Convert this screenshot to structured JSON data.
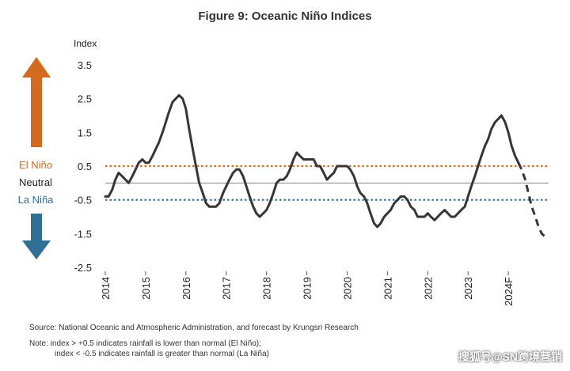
{
  "title": "Figure 9: Oceanic Niño Indices",
  "side_labels": {
    "el_nino": "El Niño",
    "neutral": "Neutral",
    "la_nina": "La Niña"
  },
  "colors": {
    "el_nino": "#d46a1e",
    "la_nina": "#2f6f96",
    "line": "#3a3436",
    "zero_line": "#888888"
  },
  "source": "Source: National Oceanic and Atmospheric Administration, and forecast by Krungsri Research",
  "note_line1": "Note:   index > +0.5 indicates rainfall is lower than normal (El Niño);",
  "note_line2": "index < -0.5 indicates rainfall is greater than normal (La Niña)",
  "watermark": "搜狐号@SN跨境营销",
  "chart_data": {
    "type": "line",
    "ylabel": "Index",
    "ylim": [
      -2.5,
      3.5
    ],
    "yticks": [
      3.5,
      2.5,
      1.5,
      0.5,
      -0.5,
      -1.5,
      -2.5
    ],
    "ytick_labels": [
      "3.5",
      "2.5",
      "1.5",
      "0.5",
      "-0.5",
      "-1.5",
      "-2.5"
    ],
    "xlim": [
      2014.0,
      2025.0
    ],
    "xticks": [
      2014,
      2015,
      2016,
      2017,
      2018,
      2019,
      2020,
      2021,
      2022,
      2023,
      2024
    ],
    "xtick_labels": [
      "2014",
      "2015",
      "2016",
      "2017",
      "2018",
      "2019",
      "2020",
      "2021",
      "2022",
      "2023",
      "2024F"
    ],
    "thresholds": [
      0.5,
      0,
      -0.5
    ],
    "series": [
      {
        "style": "solid",
        "x": [
          2014.0,
          2014.08,
          2014.17,
          2014.25,
          2014.33,
          2014.42,
          2014.5,
          2014.58,
          2014.67,
          2014.75,
          2014.83,
          2014.92,
          2015.0,
          2015.08,
          2015.17,
          2015.25,
          2015.33,
          2015.42,
          2015.5,
          2015.58,
          2015.67,
          2015.75,
          2015.83,
          2015.92,
          2016.0,
          2016.08,
          2016.17,
          2016.25,
          2016.33,
          2016.42,
          2016.5,
          2016.58,
          2016.67,
          2016.75,
          2016.83,
          2016.92,
          2017.0,
          2017.08,
          2017.17,
          2017.25,
          2017.33,
          2017.42,
          2017.5,
          2017.58,
          2017.67,
          2017.75,
          2017.83,
          2017.92,
          2018.0,
          2018.08,
          2018.17,
          2018.25,
          2018.33,
          2018.42,
          2018.5,
          2018.58,
          2018.67,
          2018.75,
          2018.83,
          2018.92,
          2019.0,
          2019.08,
          2019.17,
          2019.25,
          2019.33,
          2019.42,
          2019.5,
          2019.58,
          2019.67,
          2019.75,
          2019.83,
          2019.92,
          2020.0,
          2020.08,
          2020.17,
          2020.25,
          2020.33,
          2020.42,
          2020.5,
          2020.58,
          2020.67,
          2020.75,
          2020.83,
          2020.92,
          2021.0,
          2021.08,
          2021.17,
          2021.25,
          2021.33,
          2021.42,
          2021.5,
          2021.58,
          2021.67,
          2021.75,
          2021.83,
          2021.92,
          2022.0,
          2022.08,
          2022.17,
          2022.25,
          2022.33,
          2022.42,
          2022.5,
          2022.58,
          2022.67,
          2022.75,
          2022.83,
          2022.92,
          2023.0,
          2023.08,
          2023.17,
          2023.25,
          2023.33,
          2023.42,
          2023.5,
          2023.58,
          2023.67,
          2023.75,
          2023.83,
          2023.92,
          2024.0,
          2024.08,
          2024.17,
          2024.25
        ],
        "y": [
          -0.4,
          -0.4,
          -0.2,
          0.1,
          0.3,
          0.2,
          0.1,
          0.0,
          0.2,
          0.4,
          0.6,
          0.7,
          0.6,
          0.6,
          0.8,
          1.0,
          1.2,
          1.5,
          1.8,
          2.1,
          2.4,
          2.5,
          2.6,
          2.5,
          2.2,
          1.6,
          1.0,
          0.5,
          0.0,
          -0.3,
          -0.6,
          -0.7,
          -0.7,
          -0.7,
          -0.6,
          -0.3,
          -0.1,
          0.1,
          0.3,
          0.4,
          0.4,
          0.2,
          -0.1,
          -0.4,
          -0.7,
          -0.9,
          -1.0,
          -0.9,
          -0.8,
          -0.6,
          -0.3,
          0.0,
          0.1,
          0.1,
          0.2,
          0.4,
          0.7,
          0.9,
          0.8,
          0.7,
          0.7,
          0.7,
          0.7,
          0.5,
          0.5,
          0.3,
          0.1,
          0.2,
          0.3,
          0.5,
          0.5,
          0.5,
          0.5,
          0.4,
          0.2,
          -0.1,
          -0.3,
          -0.4,
          -0.6,
          -0.9,
          -1.2,
          -1.3,
          -1.2,
          -1.0,
          -0.9,
          -0.8,
          -0.6,
          -0.5,
          -0.4,
          -0.4,
          -0.5,
          -0.7,
          -0.8,
          -1.0,
          -1.0,
          -1.0,
          -0.9,
          -1.0,
          -1.1,
          -1.0,
          -0.9,
          -0.8,
          -0.9,
          -1.0,
          -1.0,
          -0.9,
          -0.8,
          -0.7,
          -0.4,
          -0.1,
          0.2,
          0.5,
          0.8,
          1.1,
          1.3,
          1.6,
          1.8,
          1.9,
          2.0,
          1.8,
          1.5,
          1.1,
          0.8,
          0.6
        ]
      },
      {
        "style": "dashed",
        "x": [
          2024.25,
          2024.33,
          2024.42,
          2024.5,
          2024.58,
          2024.67,
          2024.75,
          2024.83,
          2024.92,
          2025.0
        ],
        "y": [
          0.6,
          0.4,
          0.1,
          -0.3,
          -0.7,
          -1.0,
          -1.3,
          -1.5,
          -1.6,
          -1.6
        ]
      }
    ]
  }
}
